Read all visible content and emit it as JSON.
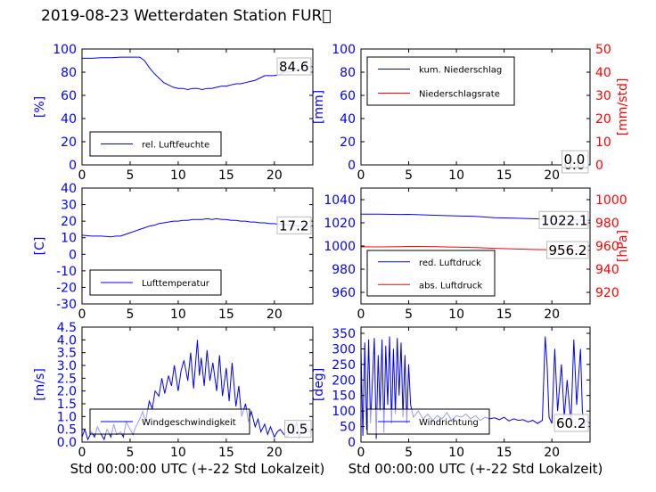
{
  "title": "2019-08-23 Wetterdaten Station FUR\u0000",
  "colors": {
    "primary": "#0000ff",
    "secondary": "#ff0000",
    "secondary_dark": "#cc0000",
    "frame": "#000000"
  },
  "chart_data": [
    {
      "type": "line",
      "id": "humidity",
      "ylabel": "[%]",
      "xlim": [
        0,
        24
      ],
      "ylim": [
        0,
        100
      ],
      "yticks": [
        0,
        20,
        40,
        60,
        80,
        100
      ],
      "xticks": [
        0,
        5,
        10,
        15,
        20
      ],
      "xlabel": "",
      "last_value": "84.6",
      "legend": {
        "position": "lower-left"
      },
      "series": [
        {
          "name": "rel. Luftfeuchte",
          "axis": "left",
          "color": "#0000ff",
          "x": [
            0,
            1,
            2,
            3,
            4,
            5,
            6,
            6.5,
            7,
            7.5,
            8,
            8.5,
            9,
            9.5,
            10,
            10.5,
            11,
            11.5,
            12,
            12.5,
            13,
            13.5,
            14,
            14.5,
            15,
            15.5,
            16,
            16.5,
            17,
            17.5,
            18,
            18.5,
            19,
            19.5,
            20,
            20.5,
            21,
            21.5,
            22,
            22.5,
            23,
            23.5,
            24
          ],
          "y": [
            92,
            92,
            92.5,
            92.5,
            93,
            93,
            93,
            90,
            84,
            79,
            75,
            71,
            69,
            67,
            66,
            66,
            65,
            66,
            66,
            65,
            66,
            66,
            67,
            68,
            68,
            69,
            70,
            70,
            71,
            72,
            73,
            75,
            77,
            77,
            77,
            78,
            80,
            80,
            81,
            82,
            84,
            85,
            84.6
          ]
        }
      ]
    },
    {
      "type": "line",
      "id": "precipitation",
      "ylabel": "[mm]",
      "y2label": "[mm/std]",
      "xlim": [
        0,
        24
      ],
      "ylim": [
        0,
        100
      ],
      "y2lim": [
        0,
        50
      ],
      "yticks": [
        0,
        20,
        40,
        60,
        80,
        100
      ],
      "y2ticks": [
        0,
        10,
        20,
        30,
        40,
        50
      ],
      "xticks": [
        0,
        5,
        10,
        15,
        20
      ],
      "xlabel": "",
      "last_value": "0.0",
      "last_value2": "0.0",
      "legend": {
        "position": "upper-left"
      },
      "series": [
        {
          "name": "kum. Niederschlag",
          "axis": "left",
          "color": "#0000ff",
          "x": [
            0,
            24
          ],
          "y": [
            0,
            0
          ]
        },
        {
          "name": "Niederschlagsrate",
          "axis": "right",
          "color": "#ff0000",
          "x": [
            0,
            24
          ],
          "y": [
            0,
            0
          ]
        }
      ]
    },
    {
      "type": "line",
      "id": "temperature",
      "ylabel": "[C]",
      "xlim": [
        0,
        24
      ],
      "ylim": [
        -30,
        40
      ],
      "yticks": [
        -30,
        -20,
        -10,
        0,
        10,
        20,
        30,
        40
      ],
      "xticks": [
        0,
        5,
        10,
        15,
        20
      ],
      "xlabel": "",
      "last_value": "17.2",
      "legend": {
        "position": "lower-left"
      },
      "series": [
        {
          "name": "Lufttemperatur",
          "axis": "left",
          "color": "#0000ff",
          "x": [
            0,
            1,
            2,
            3,
            3.5,
            4,
            4.5,
            5,
            5.5,
            6,
            6.5,
            7,
            7.5,
            8,
            8.5,
            9,
            9.5,
            10,
            10.5,
            11,
            11.5,
            12,
            12.5,
            13,
            13.5,
            14,
            14.5,
            15,
            15.5,
            16,
            16.5,
            17,
            17.5,
            18,
            18.5,
            19,
            19.5,
            20,
            20.5,
            21,
            21.5,
            22,
            22.5,
            23,
            23.5,
            24
          ],
          "y": [
            11.5,
            11,
            11,
            10.5,
            11,
            11,
            12,
            13,
            14,
            15,
            16,
            17,
            17.5,
            18.5,
            19,
            19.5,
            20,
            20,
            20.5,
            20.5,
            21,
            21,
            21,
            21.5,
            21,
            21.5,
            21,
            21,
            20.5,
            20.5,
            20,
            20,
            19.5,
            19.5,
            19,
            19,
            18.5,
            18.5,
            18,
            18,
            17.5,
            17.5,
            17,
            17,
            16.5,
            17.2
          ]
        }
      ]
    },
    {
      "type": "line",
      "id": "pressure",
      "ylabel": "",
      "y2label": "[hPa]",
      "xlim": [
        0,
        24
      ],
      "ylim": [
        950,
        1050
      ],
      "y2lim": [
        910,
        1010
      ],
      "yticks": [
        960,
        980,
        1000,
        1020,
        1040
      ],
      "y2ticks": [
        920,
        940,
        960,
        980,
        1000
      ],
      "xticks": [
        0,
        5,
        10,
        15,
        20
      ],
      "xlabel": "",
      "last_value": "1022.1",
      "last_value2": "956.2",
      "legend": {
        "position": "lower-left"
      },
      "series": [
        {
          "name": "red. Luftdruck",
          "axis": "left",
          "color": "#0000ff",
          "x": [
            0,
            2,
            4,
            5,
            6,
            8,
            10,
            12,
            14,
            16,
            18,
            20,
            22,
            24
          ],
          "y": [
            1027.5,
            1027.5,
            1027.2,
            1027.3,
            1027,
            1026.5,
            1026,
            1025.5,
            1024.5,
            1024,
            1023.5,
            1023,
            1022.5,
            1022.1
          ]
        },
        {
          "name": "abs. Luftdruck",
          "axis": "right",
          "color": "#ff0000",
          "x": [
            0,
            2,
            4,
            5,
            6,
            8,
            10,
            12,
            14,
            16,
            18,
            20,
            22,
            24
          ],
          "y": [
            959.3,
            959.2,
            959.4,
            959.6,
            959.6,
            959.4,
            959,
            958.6,
            958,
            957.5,
            957,
            956.8,
            956.5,
            956.2
          ]
        }
      ]
    },
    {
      "type": "line",
      "id": "windspeed",
      "ylabel": "[m/s]",
      "xlim": [
        0,
        24
      ],
      "ylim": [
        0,
        4.5
      ],
      "yticks": [
        0.0,
        0.5,
        1.0,
        1.5,
        2.0,
        2.5,
        3.0,
        3.5,
        4.0,
        4.5
      ],
      "xticks": [
        0,
        5,
        10,
        15,
        20
      ],
      "xlabel": "Std 00:00:00 UTC (+-22 Std Lokalzeit)",
      "last_value": "0.5",
      "legend": {
        "position": "lower-center"
      },
      "series": [
        {
          "name": "Windgeschwindigkeit",
          "axis": "left",
          "color": "#0000ff",
          "x": [
            0,
            0.3,
            0.6,
            1,
            1.3,
            1.6,
            2,
            2.3,
            2.6,
            3,
            3.3,
            3.6,
            4,
            4.3,
            4.6,
            5,
            5.3,
            5.6,
            6,
            6.3,
            6.6,
            7,
            7.3,
            7.6,
            8,
            8.3,
            8.6,
            9,
            9.3,
            9.6,
            10,
            10.3,
            10.6,
            11,
            11.3,
            11.6,
            12,
            12.2,
            12.4,
            12.7,
            13,
            13.3,
            13.6,
            14,
            14.3,
            14.6,
            15,
            15.3,
            15.6,
            16,
            16.3,
            16.6,
            17,
            17.3,
            17.6,
            18,
            18.3,
            18.6,
            19,
            19.3,
            19.6,
            20,
            20.3,
            20.6,
            21,
            21.3,
            21.6,
            22,
            22.3,
            22.6,
            23,
            23.3,
            23.6,
            24
          ],
          "y": [
            0.2,
            0.5,
            0.1,
            0.4,
            0.2,
            0.6,
            0.3,
            0.1,
            0.5,
            0.2,
            0.7,
            0.3,
            0.4,
            0.2,
            0.8,
            0.5,
            0.3,
            0.6,
            0.9,
            1.2,
            0.8,
            1.6,
            1.3,
            2.0,
            1.8,
            2.5,
            1.9,
            2.6,
            2.2,
            3.0,
            2.0,
            2.8,
            3.2,
            2.4,
            3.5,
            2.1,
            4.0,
            2.6,
            3.3,
            2.2,
            3.6,
            2.4,
            3.1,
            2.0,
            3.4,
            1.8,
            2.9,
            1.6,
            3.1,
            1.4,
            2.2,
            1.0,
            1.5,
            0.8,
            1.2,
            0.6,
            0.9,
            0.4,
            0.7,
            0.3,
            0.6,
            0.2,
            0.4,
            0.5,
            0.3,
            0.2,
            0.4,
            0.3,
            0.8,
            0.2,
            0.6,
            0.7,
            0.4,
            0.5
          ]
        }
      ]
    },
    {
      "type": "line",
      "id": "winddirection",
      "ylabel": "[deg]",
      "xlim": [
        0,
        24
      ],
      "ylim": [
        0,
        370
      ],
      "yticks": [
        0,
        50,
        100,
        150,
        200,
        250,
        300,
        350
      ],
      "xticks": [
        0,
        5,
        10,
        15,
        20
      ],
      "xlabel": "Std 00:00:00 UTC (+-22 Std Lokalzeit)",
      "last_value": "60.2",
      "legend": {
        "position": "lower-center"
      },
      "series": [
        {
          "name": "Windrichtung",
          "axis": "left",
          "color": "#0000ff",
          "x": [
            0,
            0.2,
            0.4,
            0.6,
            0.8,
            1.0,
            1.2,
            1.4,
            1.6,
            1.8,
            2.0,
            2.2,
            2.4,
            2.6,
            2.8,
            3.0,
            3.2,
            3.4,
            3.6,
            3.8,
            4.0,
            4.2,
            4.4,
            4.6,
            4.8,
            5.0,
            5.2,
            5.5,
            6,
            6.5,
            7,
            7.5,
            8,
            8.5,
            9,
            9.5,
            10,
            10.5,
            11,
            11.5,
            12,
            12.5,
            13,
            13.5,
            14,
            14.5,
            15,
            15.5,
            16,
            16.5,
            17,
            17.5,
            18,
            18.5,
            19,
            19.3,
            19.5,
            19.7,
            20,
            20.3,
            20.6,
            21,
            21.3,
            21.6,
            22,
            22.3,
            22.6,
            23,
            23.2,
            23.4,
            23.6,
            24
          ],
          "y": [
            300,
            20,
            320,
            40,
            330,
            60,
            200,
            335,
            10,
            280,
            100,
            330,
            30,
            310,
            120,
            340,
            60,
            300,
            90,
            335,
            150,
            320,
            80,
            280,
            60,
            250,
            120,
            80,
            100,
            75,
            90,
            70,
            85,
            75,
            95,
            70,
            85,
            80,
            90,
            75,
            85,
            70,
            80,
            75,
            78,
            72,
            80,
            68,
            75,
            70,
            72,
            65,
            70,
            60,
            70,
            340,
            250,
            80,
            60,
            300,
            100,
            250,
            80,
            200,
            60,
            330,
            120,
            300,
            100,
            50,
            70,
            60.2
          ]
        }
      ]
    }
  ]
}
